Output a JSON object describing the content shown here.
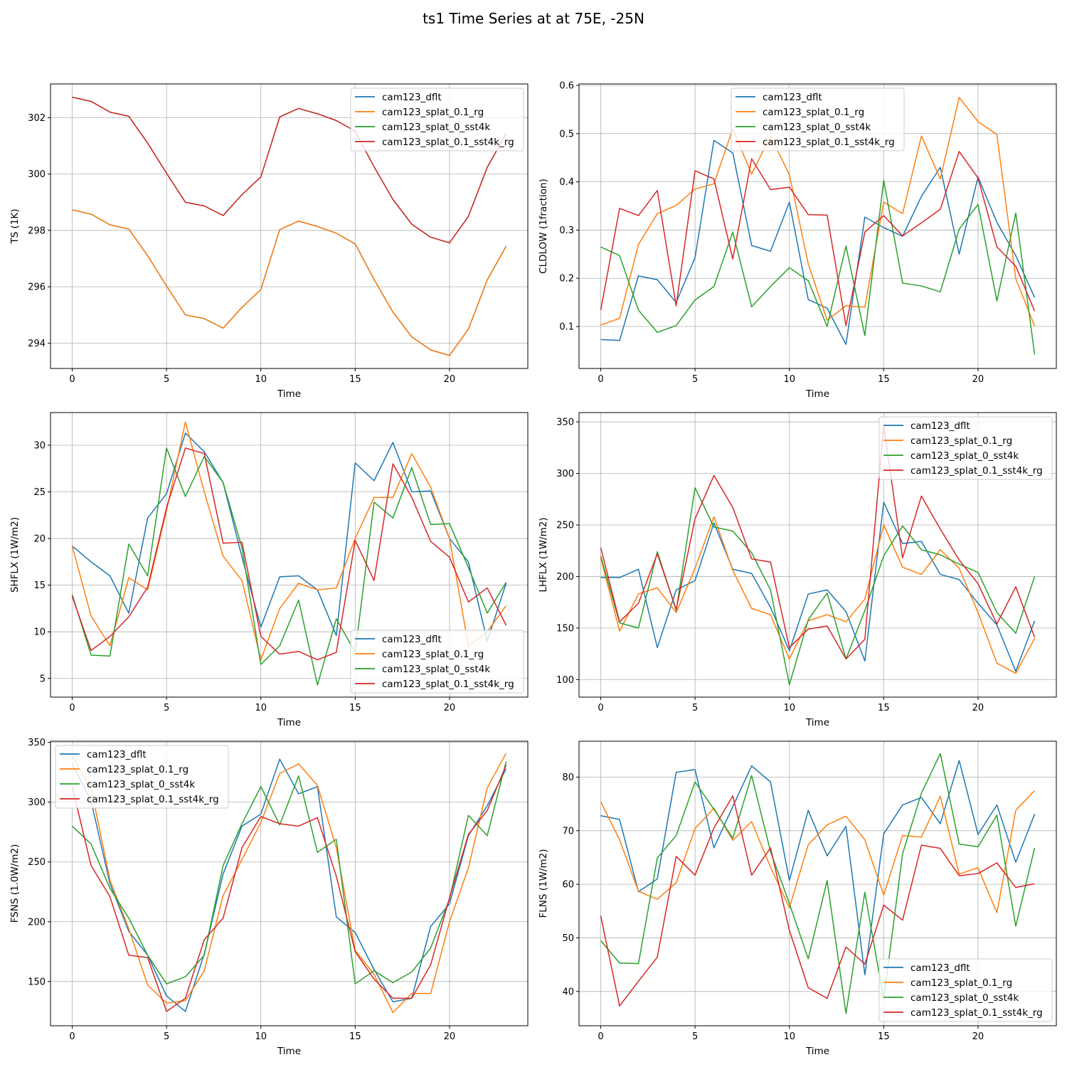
{
  "figure_title": "ts1 Time Series at at 75E, -25N",
  "colors": {
    "cam123_dflt": "#1f77b4",
    "cam123_splat_0.1_rg": "#ff7f0e",
    "cam123_splat_0_sst4k": "#2ca02c",
    "cam123_splat_0.1_sst4k_rg": "#d62728"
  },
  "chart_data": [
    {
      "id": "ts",
      "type": "line",
      "title": "",
      "xlabel": "Time",
      "ylabel": "TS (1K)",
      "xlim": [
        -1.15,
        24.15
      ],
      "ylim": [
        293.1,
        303.2
      ],
      "xticks": [
        0,
        5,
        10,
        15,
        20
      ],
      "yticks": [
        294,
        296,
        298,
        300,
        302
      ],
      "legend": "upper right",
      "series": [
        {
          "name": "cam123_dflt",
          "values": [
            298.73,
            298.58,
            298.2,
            298.05,
            297.1,
            296.03,
            295.0,
            294.87,
            294.53,
            295.27,
            295.9,
            298.03,
            298.33,
            298.14,
            297.9,
            297.52,
            296.26,
            295.1,
            294.22,
            293.76,
            293.56,
            294.5,
            296.24,
            297.44
          ]
        },
        {
          "name": "cam123_splat_0.1_rg",
          "values": [
            298.73,
            298.58,
            298.2,
            298.05,
            297.1,
            296.03,
            295.0,
            294.87,
            294.53,
            295.27,
            295.9,
            298.03,
            298.33,
            298.14,
            297.9,
            297.52,
            296.26,
            295.1,
            294.22,
            293.76,
            293.56,
            294.5,
            296.24,
            297.44
          ]
        },
        {
          "name": "cam123_splat_0_sst4k",
          "values": [
            302.73,
            302.58,
            302.2,
            302.05,
            301.1,
            300.03,
            299.0,
            298.87,
            298.53,
            299.27,
            299.9,
            302.03,
            302.33,
            302.14,
            301.9,
            301.52,
            300.26,
            299.1,
            298.22,
            297.76,
            297.56,
            298.5,
            300.24,
            301.44
          ]
        },
        {
          "name": "cam123_splat_0.1_sst4k_rg",
          "values": [
            302.73,
            302.58,
            302.2,
            302.05,
            301.1,
            300.03,
            299.0,
            298.87,
            298.53,
            299.27,
            299.9,
            302.03,
            302.33,
            302.14,
            301.9,
            301.52,
            300.26,
            299.1,
            298.22,
            297.76,
            297.56,
            298.5,
            300.24,
            301.44
          ]
        }
      ]
    },
    {
      "id": "cldlow",
      "type": "line",
      "title": "",
      "xlabel": "Time",
      "ylabel": "CLDLOW (1fraction)",
      "xlim": [
        -1.15,
        24.15
      ],
      "ylim": [
        0.013,
        0.603
      ],
      "xticks": [
        0,
        5,
        10,
        15,
        20
      ],
      "yticks": [
        0.1,
        0.2,
        0.3,
        0.4,
        0.5,
        0.6
      ],
      "legend": "upper center",
      "series": [
        {
          "name": "cam123_dflt",
          "values": [
            0.073,
            0.071,
            0.205,
            0.197,
            0.15,
            0.243,
            0.486,
            0.46,
            0.268,
            0.256,
            0.358,
            0.156,
            0.138,
            0.063,
            0.327,
            0.305,
            0.287,
            0.37,
            0.43,
            0.25,
            0.41,
            0.316,
            0.247,
            0.16
          ]
        },
        {
          "name": "cam123_splat_0.1_rg",
          "values": [
            0.103,
            0.117,
            0.27,
            0.334,
            0.351,
            0.385,
            0.396,
            0.51,
            0.416,
            0.495,
            0.415,
            0.23,
            0.113,
            0.143,
            0.14,
            0.358,
            0.334,
            0.495,
            0.406,
            0.575,
            0.525,
            0.498,
            0.199,
            0.101
          ]
        },
        {
          "name": "cam123_splat_0_sst4k",
          "values": [
            0.265,
            0.247,
            0.134,
            0.088,
            0.102,
            0.155,
            0.183,
            0.296,
            0.141,
            0.183,
            0.222,
            0.195,
            0.1,
            0.267,
            0.081,
            0.403,
            0.19,
            0.184,
            0.172,
            0.302,
            0.353,
            0.153,
            0.335,
            0.042
          ]
        },
        {
          "name": "cam123_splat_0.1_sst4k_rg",
          "values": [
            0.134,
            0.345,
            0.33,
            0.382,
            0.143,
            0.423,
            0.406,
            0.24,
            0.448,
            0.384,
            0.389,
            0.332,
            0.331,
            0.102,
            0.296,
            0.33,
            0.288,
            0.315,
            0.343,
            0.463,
            0.408,
            0.265,
            0.225,
            0.132
          ]
        }
      ]
    },
    {
      "id": "shflx",
      "type": "line",
      "title": "",
      "xlabel": "Time",
      "ylabel": "SHFLX (1W/m2)",
      "xlim": [
        -1.15,
        24.15
      ],
      "ylim": [
        3.0,
        33.5
      ],
      "xticks": [
        0,
        5,
        10,
        15,
        20
      ],
      "yticks": [
        5,
        10,
        15,
        20,
        25,
        30
      ],
      "legend": "lower right",
      "series": [
        {
          "name": "cam123_dflt",
          "values": [
            19.2,
            17.5,
            16.0,
            12.0,
            22.2,
            24.8,
            31.3,
            29.3,
            26.0,
            18.0,
            10.5,
            15.9,
            16.0,
            14.5,
            9.6,
            28.1,
            26.2,
            30.3,
            25.0,
            25.1,
            20.0,
            17.5,
            9.0,
            15.2
          ]
        },
        {
          "name": "cam123_splat_0.1_rg",
          "values": [
            19.2,
            11.7,
            8.5,
            15.8,
            14.5,
            23.0,
            32.5,
            25.0,
            18.1,
            15.5,
            7.0,
            12.5,
            15.2,
            14.5,
            14.7,
            20.0,
            24.4,
            24.4,
            29.1,
            25.5,
            20.0,
            8.5,
            10.0,
            12.8
          ]
        },
        {
          "name": "cam123_splat_0_sst4k",
          "values": [
            14.0,
            7.5,
            7.4,
            19.4,
            16.0,
            29.7,
            24.5,
            28.8,
            26.0,
            19.0,
            6.5,
            8.5,
            13.4,
            4.3,
            11.4,
            7.8,
            23.9,
            22.2,
            27.6,
            21.5,
            21.6,
            16.9,
            12.0,
            15.3
          ]
        },
        {
          "name": "cam123_splat_0.1_sst4k_rg",
          "values": [
            13.8,
            8.0,
            9.5,
            11.6,
            14.8,
            23.3,
            29.7,
            29.1,
            19.5,
            19.6,
            9.5,
            7.6,
            7.9,
            7.0,
            7.8,
            19.8,
            15.5,
            28.0,
            24.4,
            19.7,
            18.0,
            13.2,
            14.7,
            10.7
          ]
        }
      ]
    },
    {
      "id": "lhflx",
      "type": "line",
      "title": "",
      "xlabel": "Time",
      "ylabel": "LHFLX (1W/m2)",
      "xlim": [
        -1.15,
        24.15
      ],
      "ylim": [
        83,
        359
      ],
      "xticks": [
        0,
        5,
        10,
        15,
        20
      ],
      "yticks": [
        100,
        150,
        200,
        250,
        300,
        350
      ],
      "legend": "upper right",
      "series": [
        {
          "name": "cam123_dflt",
          "values": [
            199,
            199,
            207,
            131,
            187,
            196,
            252,
            207,
            203,
            170,
            128,
            183,
            187,
            166,
            118,
            272,
            232,
            234,
            202,
            197,
            174,
            153,
            108,
            157
          ]
        },
        {
          "name": "cam123_splat_0.1_rg",
          "values": [
            218,
            147,
            183,
            189,
            165,
            208,
            258,
            206,
            169,
            163,
            120,
            157,
            163,
            156,
            178,
            250,
            209,
            202,
            226,
            208,
            165,
            116,
            106,
            140
          ]
        },
        {
          "name": "cam123_splat_0_sst4k",
          "values": [
            220,
            155,
            150,
            224,
            167,
            286,
            248,
            244,
            223,
            187,
            95,
            158,
            184,
            120,
            167,
            220,
            249,
            226,
            221,
            212,
            204,
            165,
            145,
            200
          ]
        },
        {
          "name": "cam123_splat_0.1_sst4k_rg",
          "values": [
            228,
            156,
            174,
            222,
            168,
            256,
            298,
            267,
            217,
            214,
            131,
            149,
            152,
            120,
            139,
            346,
            218,
            278,
            246,
            216,
            193,
            154,
            190,
            141
          ]
        }
      ]
    },
    {
      "id": "fsns",
      "type": "line",
      "title": "",
      "xlabel": "Time",
      "ylabel": "FSNS (1.0W/m2)",
      "xlim": [
        -1.15,
        24.15
      ],
      "ylim": [
        113,
        351
      ],
      "xticks": [
        0,
        5,
        10,
        15,
        20
      ],
      "yticks": [
        150,
        200,
        250,
        300,
        350
      ],
      "legend": "upper left",
      "series": [
        {
          "name": "cam123_dflt",
          "values": [
            332,
            301,
            232,
            192,
            172,
            138,
            125,
            173,
            240,
            280,
            290,
            336,
            307,
            313,
            204,
            191,
            160,
            133,
            136,
            196,
            215,
            272,
            297,
            328
          ]
        },
        {
          "name": "cam123_splat_0.1_rg",
          "values": [
            338,
            312,
            235,
            194,
            147,
            132,
            134,
            159,
            222,
            252,
            283,
            324,
            332,
            314,
            262,
            176,
            156,
            124,
            140,
            140,
            200,
            245,
            312,
            341
          ]
        },
        {
          "name": "cam123_splat_0_sst4k",
          "values": [
            280,
            265,
            228,
            203,
            172,
            148,
            154,
            172,
            247,
            282,
            313,
            281,
            322,
            258,
            269,
            148,
            159,
            149,
            158,
            178,
            219,
            289,
            272,
            334
          ]
        },
        {
          "name": "cam123_splat_0.1_sst4k_rg",
          "values": [
            313,
            247,
            221,
            172,
            170,
            125,
            136,
            185,
            203,
            262,
            288,
            282,
            280,
            287,
            238,
            175,
            152,
            136,
            136,
            164,
            220,
            273,
            293,
            331
          ]
        }
      ]
    },
    {
      "id": "flns",
      "type": "line",
      "title": "",
      "xlabel": "Time",
      "ylabel": "FLNS (1W/m2)",
      "xlim": [
        -1.15,
        24.15
      ],
      "ylim": [
        33.6,
        86.7
      ],
      "xticks": [
        0,
        5,
        10,
        15,
        20
      ],
      "yticks": [
        40,
        50,
        60,
        70,
        80
      ],
      "legend": "lower right",
      "series": [
        {
          "name": "cam123_dflt",
          "values": [
            72.8,
            72.1,
            58.6,
            61.0,
            80.9,
            81.4,
            66.8,
            74.5,
            82.1,
            79.1,
            60.7,
            73.8,
            65.3,
            70.8,
            43.1,
            69.4,
            74.8,
            76.2,
            71.3,
            83.1,
            69.3,
            74.8,
            64.1,
            73.1
          ]
        },
        {
          "name": "cam123_splat_0.1_rg",
          "values": [
            75.4,
            68.3,
            58.7,
            57.2,
            60.3,
            70.4,
            74.2,
            68.2,
            71.7,
            63.2,
            55.6,
            67.4,
            71.1,
            72.7,
            68.3,
            58.0,
            69.1,
            68.8,
            76.4,
            61.9,
            63.1,
            54.7,
            73.8,
            77.5
          ]
        },
        {
          "name": "cam123_splat_0_sst4k",
          "values": [
            49.5,
            45.3,
            45.2,
            64.9,
            69.1,
            79.1,
            74.0,
            68.6,
            80.3,
            66.1,
            56.4,
            46.1,
            60.7,
            35.9,
            58.5,
            38.5,
            65.7,
            77.0,
            84.4,
            67.5,
            67.0,
            72.9,
            52.2,
            66.8
          ]
        },
        {
          "name": "cam123_splat_0.1_sst4k_rg",
          "values": [
            54.1,
            37.3,
            41.9,
            46.4,
            65.2,
            61.7,
            70.5,
            76.5,
            61.7,
            66.8,
            51.4,
            40.7,
            38.7,
            48.3,
            45.1,
            56.1,
            53.3,
            67.3,
            66.7,
            61.6,
            62.0,
            64.0,
            59.4,
            60.1
          ]
        }
      ]
    }
  ]
}
